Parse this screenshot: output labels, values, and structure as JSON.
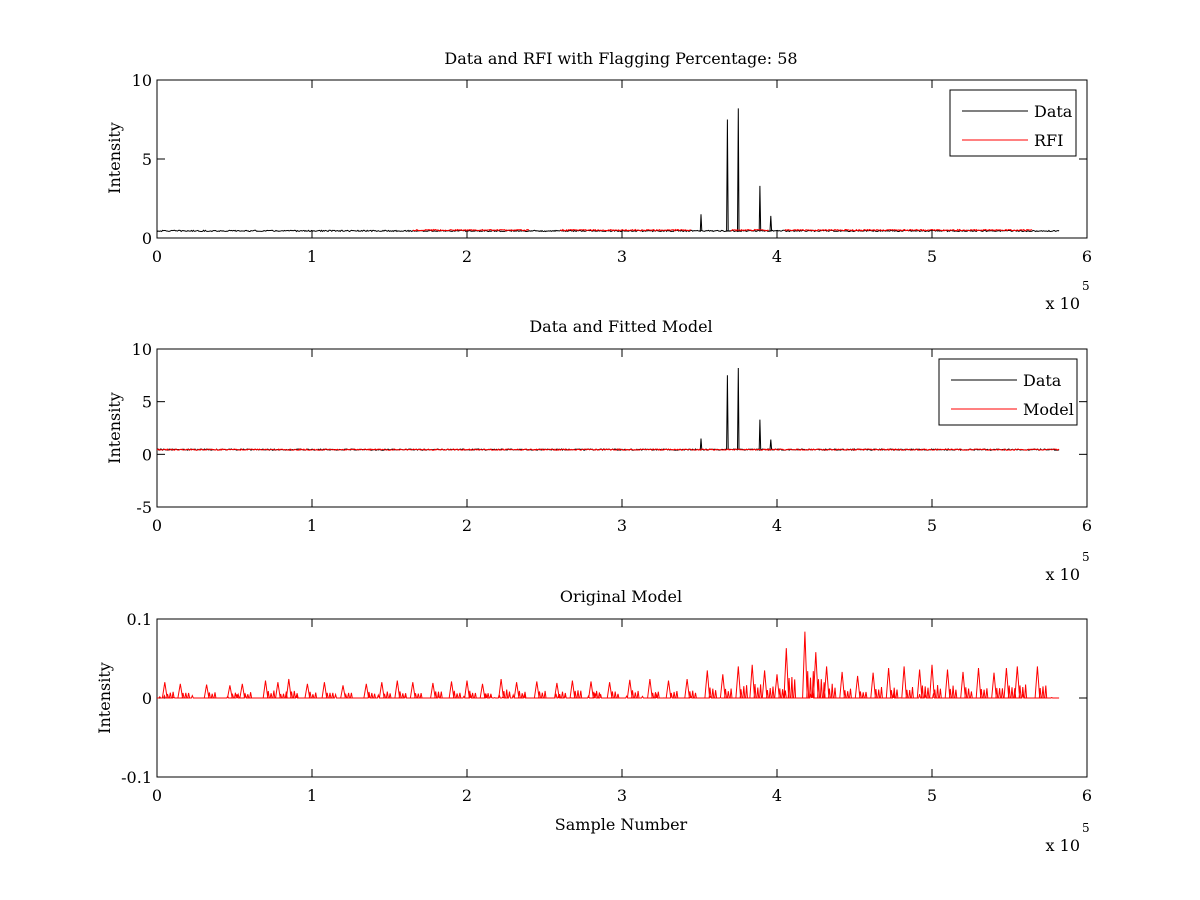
{
  "chart_data": [
    {
      "type": "line",
      "title": "Data and RFI with Flagging Percentage: 58",
      "xlabel": "",
      "ylabel": "Intensity",
      "xlim": [
        0,
        600000
      ],
      "ylim": [
        0,
        10
      ],
      "xticks": [
        0,
        1,
        2,
        3,
        4,
        5,
        6
      ],
      "xtick_labels": [
        "0",
        "1",
        "2",
        "3",
        "4",
        "5",
        "6"
      ],
      "yticks": [
        0,
        5,
        10
      ],
      "ytick_labels": [
        "0",
        "5",
        "10"
      ],
      "x_multiplier": "x 10",
      "x_multiplier_exp": "5",
      "grid": false,
      "legend_position": "top-right",
      "series": [
        {
          "name": "Data",
          "color": "#000000",
          "baseline": 0.45,
          "x_range": [
            0,
            582000
          ],
          "spikes": [
            [
              351000,
              1.5
            ],
            [
              368000,
              7.5
            ],
            [
              375000,
              8.2
            ],
            [
              389000,
              3.3
            ],
            [
              396000,
              1.4
            ]
          ]
        },
        {
          "name": "RFI",
          "color": "#ff0000",
          "baseline": 0.5,
          "segments": [
            [
              165000,
              240000
            ],
            [
              260000,
              345000
            ],
            [
              370000,
              395000
            ],
            [
              405000,
              565000
            ]
          ],
          "spikes": []
        }
      ]
    },
    {
      "type": "line",
      "title": "Data and Fitted Model",
      "xlabel": "",
      "ylabel": "Intensity",
      "xlim": [
        0,
        600000
      ],
      "ylim": [
        -5,
        10
      ],
      "xticks": [
        0,
        1,
        2,
        3,
        4,
        5,
        6
      ],
      "xtick_labels": [
        "0",
        "1",
        "2",
        "3",
        "4",
        "5",
        "6"
      ],
      "yticks": [
        -5,
        0,
        5,
        10
      ],
      "ytick_labels": [
        "-5",
        "0",
        "5",
        "10"
      ],
      "x_multiplier": "x 10",
      "x_multiplier_exp": "5",
      "grid": false,
      "legend_position": "top-right",
      "series": [
        {
          "name": "Data",
          "color": "#000000",
          "baseline": 0.45,
          "x_range": [
            0,
            582000
          ],
          "spikes": [
            [
              351000,
              1.5
            ],
            [
              368000,
              7.5
            ],
            [
              375000,
              8.2
            ],
            [
              389000,
              3.3
            ],
            [
              396000,
              1.4
            ]
          ]
        },
        {
          "name": "Model",
          "color": "#ff0000",
          "baseline": 0.45,
          "x_range": [
            0,
            582000
          ],
          "spikes": []
        }
      ]
    },
    {
      "type": "line",
      "title": "Original Model",
      "xlabel": "Sample Number",
      "ylabel": "Intensity",
      "xlim": [
        0,
        600000
      ],
      "ylim": [
        -0.1,
        0.1
      ],
      "xticks": [
        0,
        1,
        2,
        3,
        4,
        5,
        6
      ],
      "xtick_labels": [
        "0",
        "1",
        "2",
        "3",
        "4",
        "5",
        "6"
      ],
      "yticks": [
        -0.1,
        0,
        0.1
      ],
      "ytick_labels": [
        "-0.1",
        "0",
        "0.1"
      ],
      "x_multiplier": "x 10",
      "x_multiplier_exp": "5",
      "grid": false,
      "legend_position": "none",
      "series": [
        {
          "color": "#ff0000",
          "baseline": 0,
          "x_range": [
            0,
            582000
          ],
          "spikes": [
            [
              5000,
              0.02
            ],
            [
              15000,
              0.018
            ],
            [
              32000,
              0.017
            ],
            [
              47000,
              0.016
            ],
            [
              55000,
              0.018
            ],
            [
              70000,
              0.022
            ],
            [
              78000,
              0.02
            ],
            [
              85000,
              0.024
            ],
            [
              97000,
              0.018
            ],
            [
              108000,
              0.02
            ],
            [
              120000,
              0.016
            ],
            [
              135000,
              0.018
            ],
            [
              145000,
              0.02
            ],
            [
              155000,
              0.022
            ],
            [
              165000,
              0.02
            ],
            [
              178000,
              0.019
            ],
            [
              190000,
              0.021
            ],
            [
              200000,
              0.022
            ],
            [
              210000,
              0.018
            ],
            [
              222000,
              0.024
            ],
            [
              232000,
              0.02
            ],
            [
              245000,
              0.021
            ],
            [
              258000,
              0.019
            ],
            [
              268000,
              0.022
            ],
            [
              280000,
              0.021
            ],
            [
              292000,
              0.02
            ],
            [
              305000,
              0.023
            ],
            [
              318000,
              0.024
            ],
            [
              330000,
              0.022
            ],
            [
              342000,
              0.024
            ],
            [
              355000,
              0.035
            ],
            [
              365000,
              0.03
            ],
            [
              375000,
              0.04
            ],
            [
              384000,
              0.042
            ],
            [
              392000,
              0.035
            ],
            [
              400000,
              0.03
            ],
            [
              406000,
              0.063
            ],
            [
              418000,
              0.084
            ],
            [
              425000,
              0.058
            ],
            [
              432000,
              0.04
            ],
            [
              442000,
              0.033
            ],
            [
              452000,
              0.028
            ],
            [
              462000,
              0.032
            ],
            [
              472000,
              0.038
            ],
            [
              482000,
              0.04
            ],
            [
              492000,
              0.036
            ],
            [
              500000,
              0.042
            ],
            [
              510000,
              0.036
            ],
            [
              520000,
              0.033
            ],
            [
              530000,
              0.038
            ],
            [
              540000,
              0.032
            ],
            [
              548000,
              0.038
            ],
            [
              555000,
              0.04
            ],
            [
              568000,
              0.04
            ]
          ]
        }
      ]
    }
  ]
}
